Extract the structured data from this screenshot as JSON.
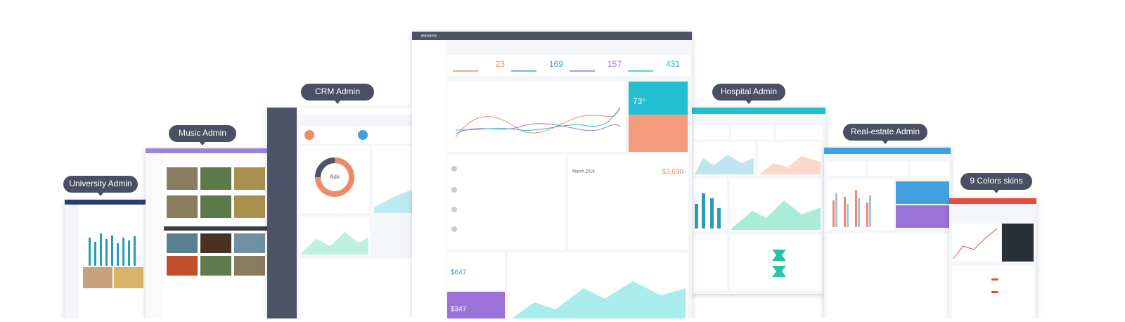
{
  "labels": [
    "University Admin",
    "Music Admin",
    "CRM Admin",
    "Hospital Admin",
    "Real-estate Admin",
    "9 Colors skins"
  ],
  "dashboard": {
    "brand": "eliteadmin",
    "stats": [
      "23",
      "169",
      "157",
      "431"
    ],
    "weather": "73°",
    "sales": "$3,690",
    "month": "March 2016",
    "earnings": "$647",
    "revenue": "$347",
    "donut": "Adv"
  }
}
